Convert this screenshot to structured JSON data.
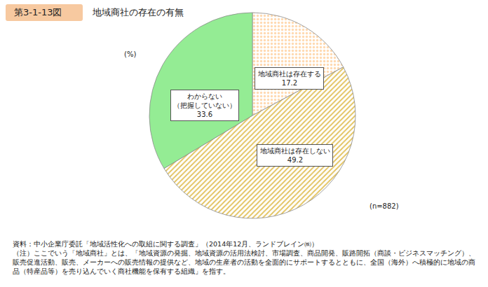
{
  "header": {
    "figure_number": "第3-1-13図"
  },
  "chart_data": {
    "type": "pie",
    "title": "地域商社の存在の有無",
    "categories": [
      "地域商社は存在する",
      "地域商社は存在しない",
      "わからない\n（把握していない）"
    ],
    "values": [
      17.2,
      49.2,
      33.6
    ],
    "colors": [
      "#f4823c",
      "#fbe492",
      "#94ec94"
    ],
    "data_labels": true,
    "annotations": [
      "(%)",
      "(n=882)"
    ]
  },
  "source": "資料：中小企業庁委託「地域活性化への取組に関する調査」（2014年12月、ランドブレイン㈱）",
  "note": "（注）ここでいう「地域商社」とは、「地域資源の発掘、地域資源の活用法検討、市場調査、商品開発、販路開拓（商談・ビジネスマッチング）、販売促進活動、販売、メーカーへの販売情報の提供など、地域の生産者の活動を全面的にサポートするとともに、全国（海外）へ積極的に地域の商品（特産品等）を売り込んでいく商社機能を保有する組織」を指す。"
}
